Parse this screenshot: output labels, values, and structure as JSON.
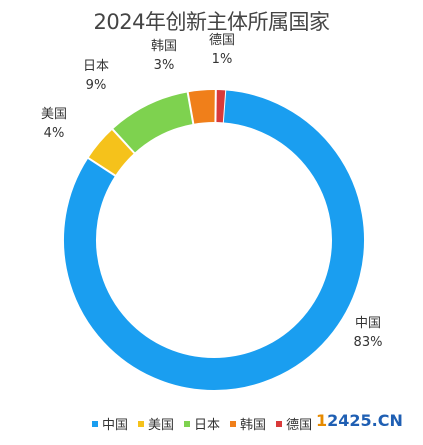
{
  "chart_data": {
    "type": "pie",
    "donut": true,
    "title": "2024年创新主体所属国家",
    "slices": [
      {
        "label": "中国",
        "value": 83,
        "pct_label": "83%",
        "color": "#1a9ef0"
      },
      {
        "label": "美国",
        "value": 4,
        "pct_label": "4%",
        "color": "#f5c21b"
      },
      {
        "label": "日本",
        "value": 9,
        "pct_label": "9%",
        "color": "#7ed24f"
      },
      {
        "label": "韩国",
        "value": 3,
        "pct_label": "3%",
        "color": "#f07f1a"
      },
      {
        "label": "德国",
        "value": 1,
        "pct_label": "1%",
        "color": "#d93a3a"
      }
    ],
    "legend_position": "bottom"
  },
  "watermark": {
    "part_a": "1",
    "part_b": "2425.CN"
  }
}
